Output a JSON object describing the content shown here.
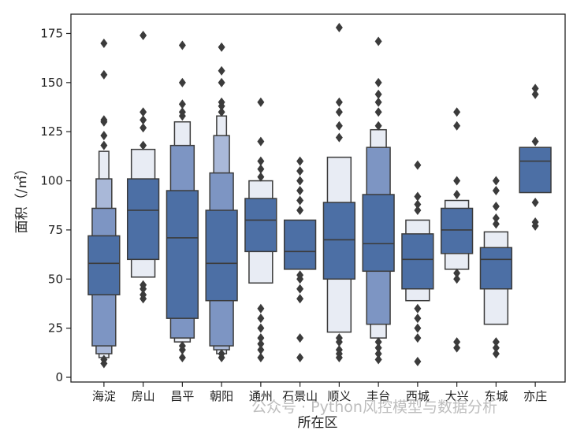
{
  "chart_data": {
    "type": "boxen",
    "title": "",
    "xlabel": "所在区",
    "ylabel": "面积（/㎡）",
    "ylim": [
      0,
      185
    ],
    "yticks": [
      0,
      25,
      50,
      75,
      100,
      125,
      150,
      175
    ],
    "categories": [
      "海淀",
      "房山",
      "昌平",
      "朝阳",
      "通州",
      "石景山",
      "顺义",
      "丰台",
      "西城",
      "大兴",
      "东城",
      "亦庄"
    ],
    "colors": {
      "level_1": "#4c6fa5",
      "level_2": "#7d95c3",
      "level_3": "#a9b8d8",
      "level_4": "#d3dbea",
      "level_5": "#e8ecf4",
      "edge": "#3b3b3b",
      "outlier": "#3b3b3b"
    },
    "series": [
      {
        "name": "海淀",
        "median": 58,
        "levels": [
          [
            42,
            72
          ],
          [
            16,
            86
          ],
          [
            12,
            101
          ],
          [
            10,
            115
          ]
        ],
        "outliers": [
          7,
          9,
          118,
          123,
          130,
          131,
          154,
          170
        ]
      },
      {
        "name": "房山",
        "median": 85,
        "levels": [
          [
            60,
            101
          ],
          [
            51,
            116
          ]
        ],
        "outliers": [
          40,
          42,
          45,
          47,
          118,
          127,
          131,
          135,
          174
        ]
      },
      {
        "name": "昌平",
        "median": 71,
        "levels": [
          [
            30,
            95
          ],
          [
            20,
            118
          ],
          [
            18,
            130
          ]
        ],
        "outliers": [
          10,
          14,
          16,
          133,
          135,
          139,
          150,
          169
        ]
      },
      {
        "name": "朝阳",
        "median": 58,
        "levels": [
          [
            39,
            85
          ],
          [
            16,
            104
          ],
          [
            14,
            123
          ],
          [
            12,
            133
          ]
        ],
        "outliers": [
          10,
          12,
          135,
          138,
          140,
          150,
          156,
          168
        ]
      },
      {
        "name": "通州",
        "median": 80,
        "levels": [
          [
            64,
            91
          ],
          [
            48,
            100
          ]
        ],
        "outliers": [
          10,
          14,
          17,
          20,
          25,
          30,
          35,
          102,
          106,
          110,
          120,
          140
        ]
      },
      {
        "name": "石景山",
        "median": 64,
        "levels": [
          [
            55,
            80
          ]
        ],
        "outliers": [
          10,
          20,
          40,
          45,
          50,
          52,
          85,
          90,
          95,
          100,
          105,
          110
        ]
      },
      {
        "name": "顺义",
        "median": 70,
        "levels": [
          [
            50,
            89
          ],
          [
            23,
            112
          ]
        ],
        "outliers": [
          10,
          12,
          14,
          18,
          20,
          122,
          128,
          135,
          140,
          178
        ]
      },
      {
        "name": "丰台",
        "median": 68,
        "levels": [
          [
            54,
            93
          ],
          [
            27,
            117
          ],
          [
            20,
            126
          ]
        ],
        "outliers": [
          9,
          12,
          15,
          18,
          128,
          135,
          140,
          144,
          150,
          171
        ]
      },
      {
        "name": "西城",
        "median": 60,
        "levels": [
          [
            45,
            73
          ],
          [
            39,
            80
          ]
        ],
        "outliers": [
          8,
          20,
          25,
          30,
          35,
          85,
          88,
          92,
          108
        ]
      },
      {
        "name": "大兴",
        "median": 75,
        "levels": [
          [
            63,
            86
          ],
          [
            55,
            90
          ]
        ],
        "outliers": [
          15,
          18,
          50,
          53,
          93,
          100,
          128,
          135
        ]
      },
      {
        "name": "东城",
        "median": 60,
        "levels": [
          [
            45,
            66
          ],
          [
            27,
            74
          ]
        ],
        "outliers": [
          12,
          15,
          18,
          78,
          81,
          87,
          95,
          100
        ]
      },
      {
        "name": "亦庄",
        "median": 110,
        "levels": [
          [
            94,
            117
          ]
        ],
        "outliers": [
          77,
          79,
          89,
          120,
          144,
          147
        ]
      }
    ]
  },
  "watermark": "公众号 · Python风控模型与数据分析"
}
